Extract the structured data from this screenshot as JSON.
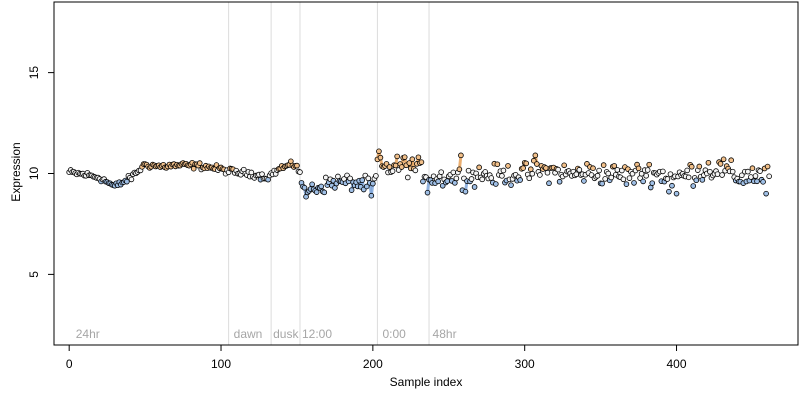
{
  "chart_data": {
    "type": "scatter",
    "xlabel": "Sample index",
    "ylabel": "Expression",
    "xlim": [
      -10,
      480
    ],
    "ylim": [
      1.5,
      18.5
    ],
    "x_ticks": [
      0,
      100,
      200,
      300,
      400
    ],
    "y_ticks": [
      5,
      10,
      15
    ],
    "grid": false,
    "annotations": [
      {
        "text": "24hr",
        "x": 3
      },
      {
        "text": "dawn",
        "x": 107
      },
      {
        "text": "dusk",
        "x": 133
      },
      {
        "text": "12:00",
        "x": 152
      },
      {
        "text": "0:00",
        "x": 205
      },
      {
        "text": "48hr",
        "x": 238
      }
    ],
    "vlines": [
      105,
      133,
      152,
      203,
      237
    ],
    "series_colors": {
      "point_fill_low": "#9fbfe6",
      "point_fill_high": "#f2c08a",
      "point_fill_mid": "#f5f5f5",
      "point_stroke": "#000000",
      "line_low": "#7fa6da",
      "line_high": "#e7a25a",
      "vline": "#dcdcdc",
      "annotation": "#a6a6a6"
    },
    "anchors": [
      [
        0,
        10.05
      ],
      [
        10,
        9.95
      ],
      [
        20,
        9.8
      ],
      [
        30,
        9.35
      ],
      [
        40,
        9.75
      ],
      [
        50,
        10.45
      ],
      [
        60,
        10.35
      ],
      [
        70,
        10.4
      ],
      [
        80,
        10.4
      ],
      [
        90,
        10.35
      ],
      [
        100,
        10.2
      ],
      [
        110,
        10.05
      ],
      [
        120,
        10.0
      ],
      [
        130,
        9.8
      ],
      [
        140,
        10.3
      ],
      [
        150,
        10.45
      ],
      [
        155,
        9.15
      ],
      [
        165,
        9.35
      ],
      [
        175,
        9.6
      ],
      [
        185,
        9.55
      ],
      [
        195,
        9.45
      ],
      [
        200,
        9.35
      ],
      [
        204,
        10.3
      ],
      [
        210,
        10.25
      ],
      [
        220,
        10.45
      ],
      [
        230,
        10.25
      ],
      [
        240,
        9.75
      ],
      [
        250,
        9.85
      ],
      [
        260,
        9.8
      ],
      [
        270,
        9.95
      ],
      [
        280,
        9.9
      ],
      [
        290,
        9.95
      ],
      [
        300,
        10.0
      ],
      [
        310,
        10.15
      ],
      [
        320,
        10.1
      ],
      [
        330,
        9.95
      ],
      [
        340,
        10.05
      ],
      [
        350,
        10.0
      ],
      [
        360,
        9.95
      ],
      [
        370,
        9.9
      ],
      [
        380,
        10.05
      ],
      [
        390,
        9.95
      ],
      [
        400,
        9.75
      ],
      [
        410,
        10.05
      ],
      [
        420,
        10.2
      ],
      [
        430,
        10.25
      ],
      [
        440,
        9.8
      ],
      [
        450,
        9.95
      ],
      [
        460,
        9.8
      ]
    ],
    "noise": [
      [
        0,
        0.15
      ],
      [
        150,
        0.15
      ],
      [
        155,
        0.35
      ],
      [
        200,
        0.35
      ],
      [
        204,
        0.45
      ],
      [
        460,
        0.55
      ]
    ],
    "extremes": [
      {
        "x": 204,
        "y": 11.1
      },
      {
        "x": 203,
        "y": 10.7
      },
      {
        "x": 156,
        "y": 8.85
      },
      {
        "x": 199,
        "y": 8.9
      },
      {
        "x": 236,
        "y": 9.05
      },
      {
        "x": 258,
        "y": 10.9
      },
      {
        "x": 307,
        "y": 10.9
      },
      {
        "x": 395,
        "y": 9.1
      },
      {
        "x": 400,
        "y": 9.0
      },
      {
        "x": 459,
        "y": 9.0
      }
    ],
    "n_points": 462
  }
}
